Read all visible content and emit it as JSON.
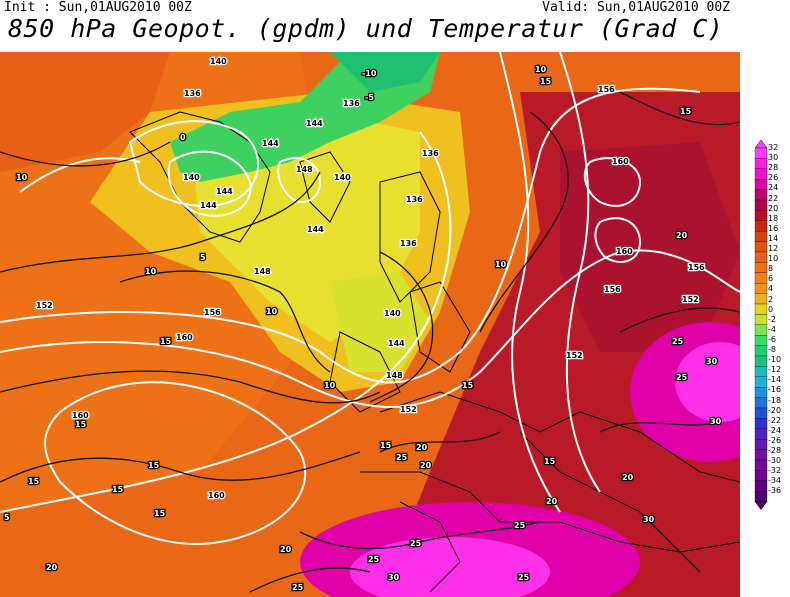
{
  "header": {
    "init": "Init : Sun,01AUG2010 00Z",
    "valid": "Valid: Sun,01AUG2010 00Z",
    "title": "850 hPa Geopot. (gpdm) und Temperatur (Grad C)"
  },
  "legend": {
    "values": [
      "32",
      "30",
      "28",
      "26",
      "24",
      "22",
      "20",
      "18",
      "16",
      "14",
      "12",
      "10",
      "8",
      "6",
      "4",
      "2",
      "0",
      "-2",
      "-4",
      "-6",
      "-8",
      "-10",
      "-12",
      "-14",
      "-16",
      "-18",
      "-20",
      "-22",
      "-24",
      "-26",
      "-28",
      "-30",
      "-32",
      "-34",
      "-36"
    ],
    "colors": [
      "#ff40ff",
      "#ff20e0",
      "#f010c8",
      "#e000a8",
      "#c00070",
      "#b00048",
      "#b81020",
      "#c82810",
      "#d84010",
      "#e05010",
      "#e86018",
      "#f07010",
      "#f08010",
      "#f09018",
      "#f0b020",
      "#e8d020",
      "#c8e030",
      "#80e050",
      "#30e060",
      "#20d070",
      "#20c080",
      "#20b8c0",
      "#20b0e0",
      "#2090e0",
      "#2070e0",
      "#2050d8",
      "#3030d0",
      "#5020c0",
      "#6018b0",
      "#7010a0",
      "#780898",
      "#780090",
      "#600080",
      "#500070"
    ]
  },
  "map": {
    "temperature_labels": [
      {
        "text": "5"
      },
      {
        "text": "0"
      },
      {
        "text": "-5"
      },
      {
        "text": "-10"
      },
      {
        "text": "10"
      },
      {
        "text": "15"
      },
      {
        "text": "20"
      },
      {
        "text": "25"
      },
      {
        "text": "30"
      }
    ],
    "geopotential_labels": [
      {
        "text": "136"
      },
      {
        "text": "140"
      },
      {
        "text": "144"
      },
      {
        "text": "148"
      },
      {
        "text": "152"
      },
      {
        "text": "156"
      },
      {
        "text": "160"
      }
    ]
  }
}
